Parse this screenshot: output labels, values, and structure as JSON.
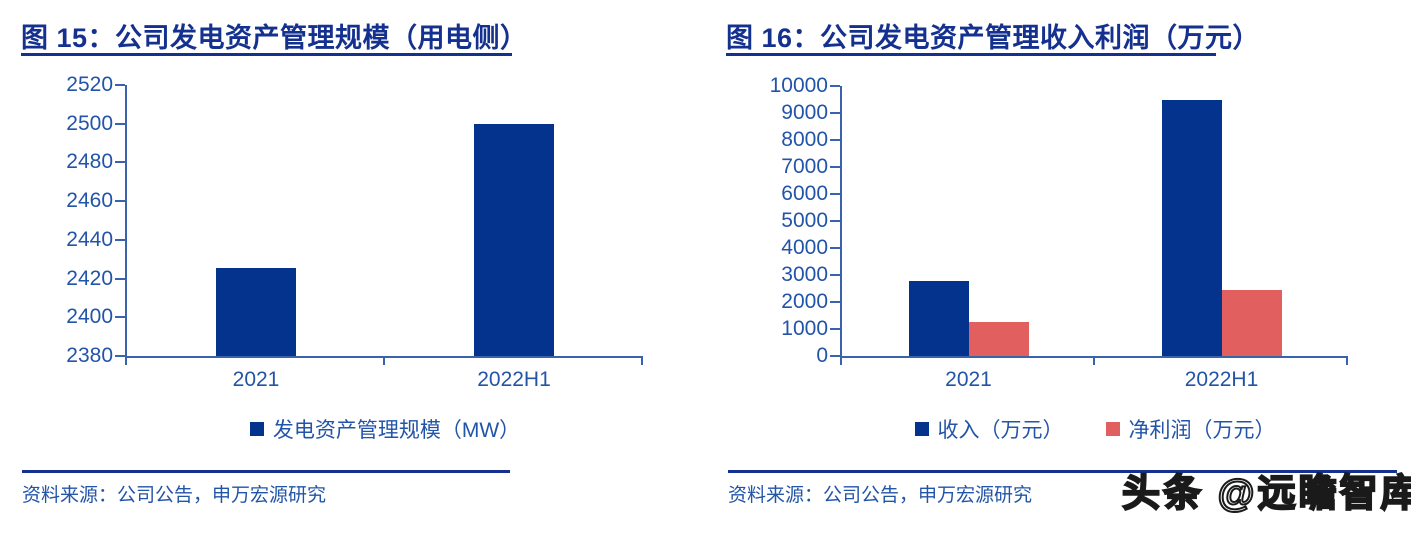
{
  "figures": [
    {
      "source": "资料来源：公司公告，申万宏源研究"
    },
    {
      "source": "资料来源：公司公告，申万宏源研究"
    }
  ],
  "watermark": {
    "text": "头条 @远瞻智库"
  },
  "colors": {
    "bar_navy": "#04338e",
    "bar_salmon": "#e25f60",
    "title_navy": "#15318f",
    "axis_line": "#3b63ad",
    "tick_text": "#2254a8",
    "watermark_black": "#1a1a1a"
  },
  "chart_data": [
    {
      "type": "bar",
      "title": "图 15：公司发电资产管理规模（用电侧）",
      "categories": [
        "2021",
        "2022H1"
      ],
      "series": [
        {
          "name": "发电资产管理规模（MW）",
          "color": "#04338e",
          "values": [
            2425.5,
            2500
          ]
        }
      ],
      "ylim": [
        2380,
        2520
      ],
      "ytick_step": 20,
      "xlabel": "",
      "ylabel": "",
      "grid": false,
      "legend_position": "bottom"
    },
    {
      "type": "bar",
      "title": "图 16：公司发电资产管理收入利润（万元）",
      "categories": [
        "2021",
        "2022H1"
      ],
      "series": [
        {
          "name": "收入（万元）",
          "color": "#04338e",
          "values": [
            2760,
            9480
          ]
        },
        {
          "name": "净利润（万元）",
          "color": "#e25f60",
          "values": [
            1270,
            2460
          ]
        }
      ],
      "ylim": [
        0,
        10000
      ],
      "ytick_step": 1000,
      "xlabel": "",
      "ylabel": "",
      "grid": false,
      "legend_position": "bottom"
    }
  ]
}
